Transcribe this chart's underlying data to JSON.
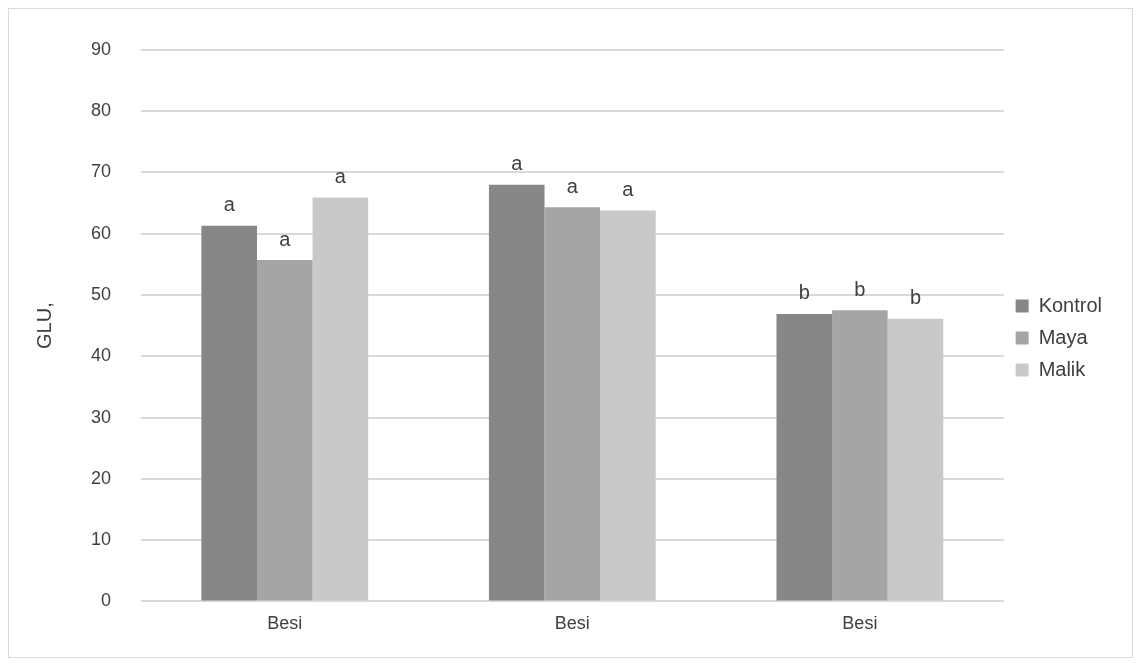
{
  "chart_data": {
    "type": "bar",
    "ylabel": "GLU,",
    "categories": [
      "Besi",
      "Besi",
      "Besi"
    ],
    "series": [
      {
        "name": "Kontrol",
        "color": "#878787",
        "values": [
          61.3,
          68.0,
          46.9
        ],
        "value_labels": [
          "a",
          "a",
          "b"
        ]
      },
      {
        "name": "Maya",
        "color": "#a5a5a5",
        "values": [
          55.7,
          64.3,
          47.5
        ],
        "value_labels": [
          "a",
          "a",
          "b"
        ]
      },
      {
        "name": "Malik",
        "color": "#c9c9c9",
        "values": [
          65.9,
          63.8,
          46.1
        ],
        "value_labels": [
          "a",
          "a",
          "b"
        ]
      }
    ],
    "ylim": [
      0,
      90
    ],
    "yticks": [
      0,
      10,
      20,
      30,
      40,
      50,
      60,
      70,
      80,
      90
    ],
    "grid": "y",
    "legend": "right"
  }
}
